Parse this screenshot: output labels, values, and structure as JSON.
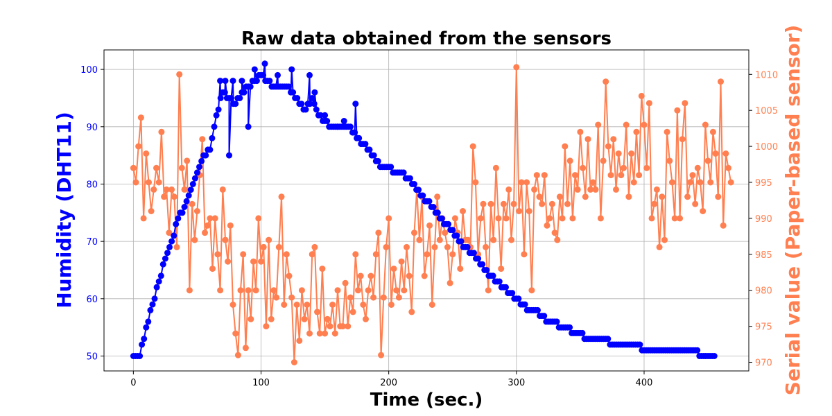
{
  "chart_data": {
    "type": "line",
    "title": "Raw data obtained from the sensors",
    "xlabel": "Time (sec.)",
    "ylabel_left": "Humidity (DHT11)",
    "ylabel_right": "Serial value (Paper-based sensor)",
    "xlim": [
      -23,
      482
    ],
    "ylim_left": [
      47.4,
      103.4
    ],
    "ylim_right": [
      968.8,
      1013.4
    ],
    "x_ticks": [
      0,
      100,
      200,
      300,
      400
    ],
    "y_left_ticks": [
      50,
      60,
      70,
      80,
      90,
      100
    ],
    "y_right_ticks": [
      970,
      975,
      980,
      985,
      990,
      995,
      1000,
      1005,
      1010
    ],
    "grid": true,
    "colors": {
      "humidity": "#0000ff",
      "serial": "#ff7f50"
    },
    "humidity_points": [
      [
        0,
        50
      ],
      [
        5,
        50
      ],
      [
        10,
        55
      ],
      [
        15,
        59
      ],
      [
        20,
        63
      ],
      [
        25,
        67
      ],
      [
        30,
        70
      ],
      [
        35,
        74
      ],
      [
        40,
        76
      ],
      [
        45,
        79
      ],
      [
        50,
        82
      ],
      [
        55,
        85
      ],
      [
        60,
        86
      ],
      [
        65,
        92
      ],
      [
        70,
        96
      ],
      [
        75,
        95
      ],
      [
        80,
        94
      ],
      [
        85,
        96
      ],
      [
        90,
        97
      ],
      [
        95,
        98
      ],
      [
        100,
        99
      ],
      [
        105,
        98
      ],
      [
        110,
        97
      ],
      [
        115,
        97
      ],
      [
        120,
        97
      ],
      [
        125,
        96
      ],
      [
        130,
        94
      ],
      [
        135,
        93
      ],
      [
        140,
        95
      ],
      [
        145,
        92
      ],
      [
        150,
        91
      ],
      [
        155,
        90
      ],
      [
        160,
        90
      ],
      [
        165,
        90
      ],
      [
        170,
        90
      ],
      [
        175,
        88
      ],
      [
        180,
        87
      ],
      [
        185,
        86
      ],
      [
        190,
        84
      ],
      [
        195,
        83
      ],
      [
        200,
        83
      ],
      [
        205,
        82
      ],
      [
        210,
        82
      ],
      [
        215,
        81
      ],
      [
        220,
        80
      ],
      [
        225,
        78
      ],
      [
        230,
        77
      ],
      [
        235,
        76
      ],
      [
        240,
        74
      ],
      [
        245,
        73
      ],
      [
        250,
        72
      ],
      [
        255,
        70
      ],
      [
        260,
        69
      ],
      [
        265,
        68
      ],
      [
        270,
        67
      ],
      [
        275,
        65
      ],
      [
        280,
        64
      ],
      [
        285,
        63
      ],
      [
        290,
        62
      ],
      [
        295,
        61
      ],
      [
        300,
        60
      ],
      [
        305,
        59
      ],
      [
        310,
        58
      ],
      [
        315,
        58
      ],
      [
        320,
        57
      ],
      [
        325,
        56
      ],
      [
        330,
        56
      ],
      [
        335,
        55
      ],
      [
        340,
        55
      ],
      [
        345,
        54
      ],
      [
        350,
        54
      ],
      [
        355,
        53
      ],
      [
        360,
        53
      ],
      [
        365,
        53
      ],
      [
        370,
        53
      ],
      [
        375,
        52
      ],
      [
        380,
        52
      ],
      [
        385,
        52
      ],
      [
        390,
        52
      ],
      [
        395,
        52
      ],
      [
        400,
        51
      ],
      [
        405,
        51
      ],
      [
        410,
        51
      ],
      [
        415,
        51
      ],
      [
        420,
        51
      ],
      [
        425,
        51
      ],
      [
        430,
        51
      ],
      [
        435,
        51
      ],
      [
        440,
        51
      ],
      [
        445,
        50
      ],
      [
        450,
        50
      ],
      [
        455,
        50
      ]
    ],
    "humidity_spikes": [
      [
        68,
        98
      ],
      [
        72,
        98
      ],
      [
        78,
        98
      ],
      [
        85,
        98
      ],
      [
        95,
        100
      ],
      [
        103,
        101
      ],
      [
        113,
        99
      ],
      [
        124,
        100
      ],
      [
        138,
        99
      ],
      [
        174,
        94
      ],
      [
        150,
        92
      ],
      [
        165,
        91
      ],
      [
        90,
        90
      ],
      [
        75,
        85
      ],
      [
        142,
        96
      ],
      [
        160,
        90
      ]
    ],
    "serial_points": [
      [
        0,
        997
      ],
      [
        2,
        995
      ],
      [
        4,
        1000
      ],
      [
        6,
        1004
      ],
      [
        8,
        990
      ],
      [
        10,
        999
      ],
      [
        12,
        995
      ],
      [
        14,
        991
      ],
      [
        16,
        994
      ],
      [
        18,
        997
      ],
      [
        20,
        995
      ],
      [
        22,
        1002
      ],
      [
        24,
        993
      ],
      [
        26,
        994
      ],
      [
        28,
        988
      ],
      [
        30,
        994
      ],
      [
        32,
        993
      ],
      [
        34,
        986
      ],
      [
        36,
        1010
      ],
      [
        38,
        997
      ],
      [
        40,
        994
      ],
      [
        42,
        998
      ],
      [
        44,
        980
      ],
      [
        46,
        992
      ],
      [
        48,
        987
      ],
      [
        50,
        991
      ],
      [
        52,
        996
      ],
      [
        54,
        1001
      ],
      [
        56,
        988
      ],
      [
        58,
        989
      ],
      [
        60,
        990
      ],
      [
        62,
        983
      ],
      [
        64,
        990
      ],
      [
        66,
        985
      ],
      [
        68,
        980
      ],
      [
        70,
        994
      ],
      [
        72,
        987
      ],
      [
        74,
        984
      ],
      [
        76,
        989
      ],
      [
        78,
        978
      ],
      [
        80,
        974
      ],
      [
        82,
        971
      ],
      [
        84,
        980
      ],
      [
        86,
        985
      ],
      [
        88,
        972
      ],
      [
        90,
        980
      ],
      [
        92,
        976
      ],
      [
        94,
        984
      ],
      [
        96,
        980
      ],
      [
        98,
        990
      ],
      [
        100,
        984
      ],
      [
        102,
        986
      ],
      [
        104,
        975
      ],
      [
        106,
        987
      ],
      [
        108,
        976
      ],
      [
        110,
        980
      ],
      [
        112,
        979
      ],
      [
        114,
        986
      ],
      [
        116,
        993
      ],
      [
        118,
        978
      ],
      [
        120,
        985
      ],
      [
        122,
        982
      ],
      [
        124,
        979
      ],
      [
        126,
        970
      ],
      [
        128,
        978
      ],
      [
        130,
        973
      ],
      [
        132,
        980
      ],
      [
        134,
        976
      ],
      [
        136,
        978
      ],
      [
        138,
        974
      ],
      [
        140,
        985
      ],
      [
        142,
        986
      ],
      [
        144,
        977
      ],
      [
        146,
        974
      ],
      [
        148,
        983
      ],
      [
        150,
        974
      ],
      [
        152,
        976
      ],
      [
        154,
        975
      ],
      [
        156,
        978
      ],
      [
        158,
        974
      ],
      [
        160,
        980
      ],
      [
        162,
        975
      ],
      [
        164,
        975
      ],
      [
        166,
        981
      ],
      [
        168,
        975
      ],
      [
        170,
        979
      ],
      [
        172,
        977
      ],
      [
        174,
        985
      ],
      [
        176,
        980
      ],
      [
        178,
        982
      ],
      [
        180,
        978
      ],
      [
        182,
        976
      ],
      [
        184,
        980
      ],
      [
        186,
        982
      ],
      [
        188,
        979
      ],
      [
        190,
        985
      ],
      [
        192,
        988
      ],
      [
        194,
        971
      ],
      [
        196,
        979
      ],
      [
        198,
        986
      ],
      [
        200,
        990
      ],
      [
        202,
        978
      ],
      [
        204,
        983
      ],
      [
        206,
        980
      ],
      [
        208,
        979
      ],
      [
        210,
        984
      ],
      [
        212,
        980
      ],
      [
        214,
        986
      ],
      [
        216,
        982
      ],
      [
        218,
        977
      ],
      [
        220,
        988
      ],
      [
        222,
        994
      ],
      [
        224,
        987
      ],
      [
        226,
        993
      ],
      [
        228,
        982
      ],
      [
        230,
        985
      ],
      [
        232,
        989
      ],
      [
        234,
        978
      ],
      [
        236,
        986
      ],
      [
        238,
        993
      ],
      [
        240,
        987
      ],
      [
        242,
        990
      ],
      [
        244,
        988
      ],
      [
        246,
        986
      ],
      [
        248,
        981
      ],
      [
        250,
        985
      ],
      [
        252,
        990
      ],
      [
        254,
        988
      ],
      [
        256,
        983
      ],
      [
        258,
        991
      ],
      [
        260,
        987
      ],
      [
        262,
        987
      ],
      [
        264,
        986
      ],
      [
        266,
        1000
      ],
      [
        268,
        995
      ],
      [
        270,
        985
      ],
      [
        272,
        990
      ],
      [
        274,
        992
      ],
      [
        276,
        986
      ],
      [
        278,
        980
      ],
      [
        280,
        992
      ],
      [
        282,
        987
      ],
      [
        284,
        997
      ],
      [
        286,
        990
      ],
      [
        288,
        983
      ],
      [
        290,
        992
      ],
      [
        292,
        990
      ],
      [
        294,
        994
      ],
      [
        296,
        987
      ],
      [
        298,
        992
      ],
      [
        300,
        1011
      ],
      [
        302,
        991
      ],
      [
        304,
        995
      ],
      [
        306,
        985
      ],
      [
        308,
        995
      ],
      [
        310,
        991
      ],
      [
        312,
        980
      ],
      [
        314,
        994
      ],
      [
        316,
        996
      ],
      [
        318,
        993
      ],
      [
        320,
        992
      ],
      [
        322,
        996
      ],
      [
        324,
        989
      ],
      [
        326,
        990
      ],
      [
        328,
        992
      ],
      [
        330,
        988
      ],
      [
        332,
        987
      ],
      [
        334,
        993
      ],
      [
        336,
        990
      ],
      [
        338,
        1000
      ],
      [
        340,
        992
      ],
      [
        342,
        998
      ],
      [
        344,
        990
      ],
      [
        346,
        996
      ],
      [
        348,
        994
      ],
      [
        350,
        1002
      ],
      [
        352,
        997
      ],
      [
        354,
        993
      ],
      [
        356,
        1001
      ],
      [
        358,
        994
      ],
      [
        360,
        995
      ],
      [
        362,
        994
      ],
      [
        364,
        1003
      ],
      [
        366,
        990
      ],
      [
        368,
        998
      ],
      [
        370,
        1009
      ],
      [
        372,
        1000
      ],
      [
        374,
        996
      ],
      [
        376,
        1001
      ],
      [
        378,
        994
      ],
      [
        380,
        999
      ],
      [
        382,
        996
      ],
      [
        384,
        997
      ],
      [
        386,
        1003
      ],
      [
        388,
        993
      ],
      [
        390,
        999
      ],
      [
        392,
        995
      ],
      [
        394,
        1002
      ],
      [
        396,
        996
      ],
      [
        398,
        1007
      ],
      [
        400,
        1003
      ],
      [
        402,
        997
      ],
      [
        404,
        1006
      ],
      [
        406,
        990
      ],
      [
        408,
        992
      ],
      [
        410,
        994
      ],
      [
        412,
        986
      ],
      [
        414,
        993
      ],
      [
        416,
        987
      ],
      [
        418,
        1002
      ],
      [
        420,
        998
      ],
      [
        422,
        995
      ],
      [
        424,
        990
      ],
      [
        426,
        1005
      ],
      [
        428,
        990
      ],
      [
        430,
        1001
      ],
      [
        432,
        1006
      ],
      [
        434,
        993
      ],
      [
        436,
        995
      ],
      [
        438,
        996
      ],
      [
        440,
        992
      ],
      [
        442,
        997
      ],
      [
        444,
        995
      ],
      [
        446,
        991
      ],
      [
        448,
        1003
      ],
      [
        450,
        998
      ],
      [
        452,
        995
      ],
      [
        454,
        1002
      ],
      [
        456,
        999
      ],
      [
        458,
        993
      ],
      [
        460,
        1009
      ],
      [
        462,
        989
      ],
      [
        464,
        999
      ],
      [
        466,
        997
      ],
      [
        468,
        995
      ]
    ]
  }
}
